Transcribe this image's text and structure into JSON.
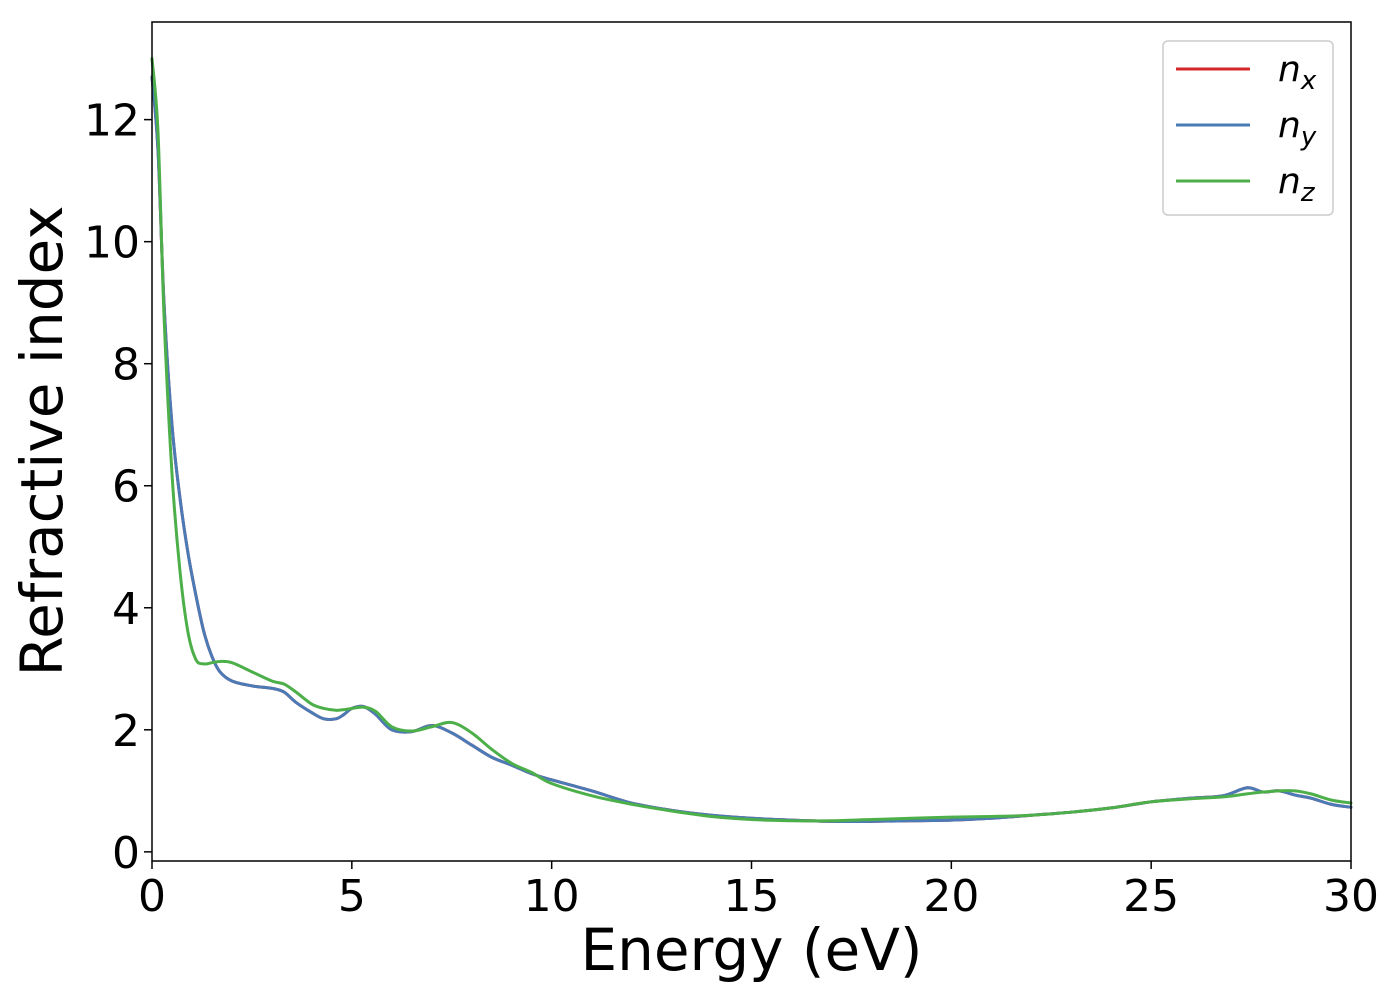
{
  "chart_data": {
    "type": "line",
    "title": "",
    "xlabel": "Energy (eV)",
    "ylabel": "Refractive index",
    "xlim": [
      0,
      30
    ],
    "ylim": [
      -0.15,
      13.6
    ],
    "xticks": [
      0,
      5,
      10,
      15,
      20,
      25,
      30
    ],
    "yticks": [
      0,
      2,
      4,
      6,
      8,
      10,
      12
    ],
    "grid": false,
    "legend_position": "top-right",
    "series": [
      {
        "name": "n",
        "subscript": "x",
        "color": "#d62728",
        "x": [
          0,
          0.15,
          0.3,
          0.5,
          0.7,
          0.9,
          1.1,
          1.3,
          1.5,
          1.7,
          2.0,
          2.5,
          3.0,
          3.3,
          3.6,
          4.0,
          4.3,
          4.6,
          4.8,
          5.0,
          5.3,
          5.6,
          6.0,
          6.5,
          7.0,
          7.5,
          8.0,
          8.5,
          9.0,
          9.5,
          10.0,
          11.0,
          12.0,
          13.0,
          14.0,
          15.0,
          16.0,
          17.0,
          18.0,
          19.0,
          20.0,
          21.0,
          22.0,
          23.0,
          24.0,
          25.0,
          26.0,
          26.8,
          27.4,
          27.8,
          28.2,
          28.6,
          29.0,
          29.5,
          30.0
        ],
        "y": [
          12.7,
          11.5,
          9.0,
          7.0,
          5.8,
          4.9,
          4.2,
          3.6,
          3.2,
          2.95,
          2.8,
          2.72,
          2.68,
          2.62,
          2.45,
          2.28,
          2.18,
          2.18,
          2.25,
          2.35,
          2.38,
          2.25,
          2.0,
          1.97,
          2.07,
          1.95,
          1.75,
          1.55,
          1.42,
          1.28,
          1.18,
          1.0,
          0.8,
          0.68,
          0.6,
          0.55,
          0.52,
          0.5,
          0.5,
          0.51,
          0.52,
          0.55,
          0.6,
          0.65,
          0.72,
          0.82,
          0.88,
          0.92,
          1.05,
          0.98,
          1.0,
          0.93,
          0.88,
          0.78,
          0.73
        ]
      },
      {
        "name": "n",
        "subscript": "y",
        "color": "#4a7bb7",
        "x": [
          0,
          0.15,
          0.3,
          0.5,
          0.7,
          0.9,
          1.1,
          1.3,
          1.5,
          1.7,
          2.0,
          2.5,
          3.0,
          3.3,
          3.6,
          4.0,
          4.3,
          4.6,
          4.8,
          5.0,
          5.3,
          5.6,
          6.0,
          6.5,
          7.0,
          7.5,
          8.0,
          8.5,
          9.0,
          9.5,
          10.0,
          11.0,
          12.0,
          13.0,
          14.0,
          15.0,
          16.0,
          17.0,
          18.0,
          19.0,
          20.0,
          21.0,
          22.0,
          23.0,
          24.0,
          25.0,
          26.0,
          26.8,
          27.4,
          27.8,
          28.2,
          28.6,
          29.0,
          29.5,
          30.0
        ],
        "y": [
          12.7,
          11.5,
          9.0,
          7.0,
          5.8,
          4.9,
          4.2,
          3.6,
          3.2,
          2.95,
          2.8,
          2.72,
          2.68,
          2.62,
          2.45,
          2.28,
          2.18,
          2.18,
          2.25,
          2.35,
          2.38,
          2.25,
          2.0,
          1.97,
          2.07,
          1.95,
          1.75,
          1.55,
          1.42,
          1.28,
          1.18,
          1.0,
          0.8,
          0.68,
          0.6,
          0.55,
          0.52,
          0.5,
          0.5,
          0.51,
          0.52,
          0.55,
          0.6,
          0.65,
          0.72,
          0.82,
          0.88,
          0.92,
          1.05,
          0.98,
          1.0,
          0.93,
          0.88,
          0.78,
          0.73
        ]
      },
      {
        "name": "n",
        "subscript": "z",
        "color": "#4daf4a",
        "x": [
          0,
          0.15,
          0.3,
          0.5,
          0.7,
          0.9,
          1.1,
          1.3,
          1.5,
          1.7,
          2.0,
          2.5,
          3.0,
          3.3,
          3.6,
          4.0,
          4.3,
          4.6,
          4.8,
          5.0,
          5.3,
          5.6,
          6.0,
          6.5,
          7.0,
          7.5,
          8.0,
          8.5,
          9.0,
          9.5,
          10.0,
          11.0,
          12.0,
          13.0,
          14.0,
          15.0,
          16.0,
          17.0,
          18.0,
          19.0,
          20.0,
          21.0,
          22.0,
          23.0,
          24.0,
          25.0,
          26.0,
          26.8,
          27.4,
          27.8,
          28.2,
          28.6,
          29.0,
          29.5,
          30.0
        ],
        "y": [
          13.0,
          11.8,
          8.8,
          6.2,
          4.6,
          3.6,
          3.15,
          3.08,
          3.1,
          3.12,
          3.1,
          2.95,
          2.8,
          2.75,
          2.62,
          2.42,
          2.35,
          2.32,
          2.33,
          2.35,
          2.37,
          2.3,
          2.05,
          1.98,
          2.05,
          2.12,
          1.95,
          1.68,
          1.45,
          1.3,
          1.12,
          0.92,
          0.78,
          0.67,
          0.58,
          0.53,
          0.51,
          0.51,
          0.53,
          0.55,
          0.57,
          0.58,
          0.6,
          0.65,
          0.72,
          0.82,
          0.87,
          0.9,
          0.95,
          0.98,
          1.0,
          1.0,
          0.95,
          0.85,
          0.8
        ]
      }
    ]
  }
}
